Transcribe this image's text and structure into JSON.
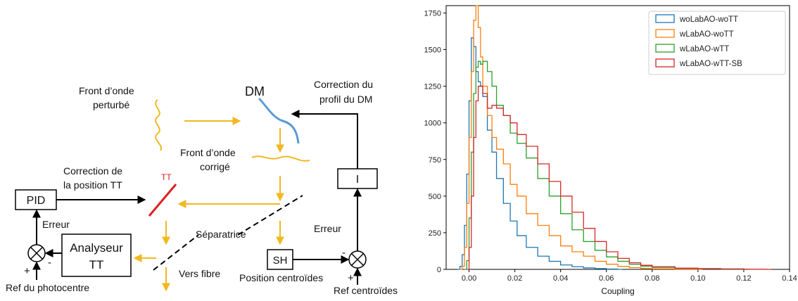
{
  "diagram": {
    "colors": {
      "beam": "#F2B820",
      "dm": "#5B9BD5",
      "tt_mirror": "#E02020",
      "tt_label": "#E02020",
      "lines": "#000000"
    },
    "labels": {
      "front_perturbe_1": "Front d’onde",
      "front_perturbe_2": "perturbé",
      "dm": "DM",
      "correction_dm_1": "Correction du",
      "correction_dm_2": "profil du DM",
      "front_corrige_1": "Front d’onde",
      "front_corrige_2": "corrigé",
      "correction_tt_1": "Correction de",
      "correction_tt_2": "la position TT",
      "tt": "TT",
      "pid": "PID",
      "integrator": "I",
      "erreur_left": "Erreur",
      "erreur_right": "Erreur",
      "separatrice": "Séparatrice",
      "analyseur_1": "Analyseur",
      "analyseur_2": "TT",
      "sh": "SH",
      "vers_fibre": "Vers fibre",
      "position_centroides": "Position centroïdes",
      "ref_centroides": "Ref centroïdes",
      "ref_photocentre": "Ref du photocentre",
      "plus": "+",
      "minus": "-"
    }
  },
  "chart_data": {
    "type": "histogram",
    "xlabel": "Coupling",
    "ylabel": "",
    "xlim": [
      -0.01,
      0.14
    ],
    "ylim": [
      0,
      1800
    ],
    "x_ticks": [
      0.0,
      0.02,
      0.04,
      0.06,
      0.08,
      0.1,
      0.12,
      0.14
    ],
    "y_ticks": [
      0,
      250,
      500,
      750,
      1000,
      1250,
      1500,
      1750
    ],
    "x_tick_labels": [
      "0.00",
      "0.02",
      "0.04",
      "0.06",
      "0.08",
      "0.10",
      "0.12",
      "0.14"
    ],
    "y_tick_labels": [
      "0",
      "250",
      "500",
      "750",
      "1000",
      "1250",
      "1500",
      "1750"
    ],
    "legend_position": "top-right",
    "series": [
      {
        "name": "woLabAO-woTT",
        "color": "#1F77B4",
        "x": [
          -0.005,
          -0.004,
          -0.003,
          -0.002,
          -0.001,
          0.0,
          0.001,
          0.002,
          0.003,
          0.004,
          0.005,
          0.006,
          0.008,
          0.01,
          0.012,
          0.015,
          0.018,
          0.021,
          0.025,
          0.03,
          0.035,
          0.04,
          0.045,
          0.05,
          0.055,
          0.06,
          0.065
        ],
        "y": [
          0,
          20,
          100,
          300,
          650,
          1150,
          1580,
          1520,
          1350,
          1280,
          1250,
          1180,
          950,
          800,
          620,
          450,
          330,
          230,
          150,
          90,
          55,
          30,
          18,
          10,
          5,
          2,
          0
        ]
      },
      {
        "name": "wLabAO-woTT",
        "color": "#FF7F0E",
        "x": [
          -0.004,
          -0.003,
          -0.002,
          -0.001,
          0.0,
          0.001,
          0.002,
          0.003,
          0.004,
          0.005,
          0.006,
          0.008,
          0.01,
          0.012,
          0.015,
          0.018,
          0.021,
          0.025,
          0.03,
          0.035,
          0.04,
          0.045,
          0.05,
          0.055,
          0.06,
          0.065,
          0.07,
          0.075,
          0.08,
          0.09,
          0.1
        ],
        "y": [
          0,
          20,
          150,
          450,
          900,
          1350,
          1700,
          1800,
          1650,
          1450,
          1250,
          1050,
          900,
          820,
          720,
          580,
          500,
          380,
          300,
          230,
          160,
          120,
          90,
          55,
          35,
          20,
          12,
          7,
          4,
          2,
          0
        ]
      },
      {
        "name": "wLabAO-wTT",
        "color": "#2CA02C",
        "x": [
          -0.002,
          -0.001,
          0.0,
          0.001,
          0.002,
          0.003,
          0.004,
          0.005,
          0.006,
          0.008,
          0.01,
          0.012,
          0.015,
          0.018,
          0.021,
          0.025,
          0.03,
          0.035,
          0.04,
          0.045,
          0.05,
          0.055,
          0.06,
          0.065,
          0.07,
          0.075,
          0.08,
          0.09,
          0.1,
          0.11,
          0.12
        ],
        "y": [
          0,
          60,
          350,
          800,
          1200,
          1380,
          1420,
          1400,
          1420,
          1350,
          1250,
          1120,
          1050,
          930,
          860,
          760,
          620,
          500,
          380,
          270,
          190,
          130,
          85,
          55,
          35,
          22,
          14,
          7,
          4,
          2,
          0
        ]
      },
      {
        "name": "wLabAO-wTT-SB",
        "color": "#D62728",
        "x": [
          -0.001,
          0.0,
          0.001,
          0.002,
          0.003,
          0.004,
          0.005,
          0.006,
          0.008,
          0.01,
          0.012,
          0.015,
          0.018,
          0.021,
          0.025,
          0.03,
          0.035,
          0.04,
          0.045,
          0.05,
          0.055,
          0.06,
          0.065,
          0.07,
          0.075,
          0.08,
          0.09,
          0.1,
          0.11,
          0.12,
          0.13
        ],
        "y": [
          0,
          150,
          500,
          900,
          1150,
          1250,
          1250,
          1200,
          1100,
          1120,
          1100,
          1050,
          1000,
          920,
          840,
          720,
          600,
          500,
          390,
          280,
          190,
          120,
          75,
          45,
          28,
          18,
          8,
          5,
          3,
          1,
          0
        ]
      }
    ]
  }
}
